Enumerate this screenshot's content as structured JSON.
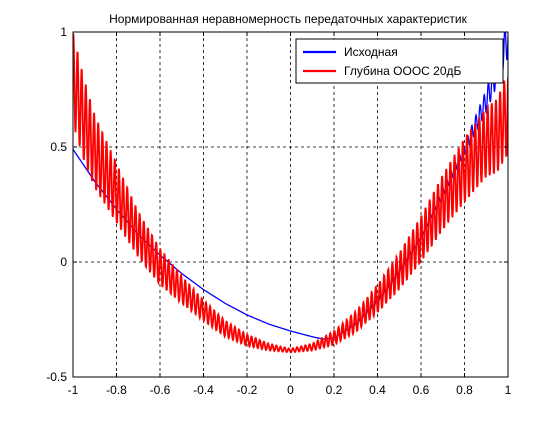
{
  "chart_data": {
    "type": "line",
    "title": "Нормированная неравномерность передаточных характеристик",
    "xlabel": "",
    "ylabel": "",
    "xlim": [
      -1,
      1
    ],
    "ylim": [
      -0.5,
      1
    ],
    "xticks": [
      -1,
      -0.8,
      -0.6,
      -0.4,
      -0.2,
      0,
      0.2,
      0.4,
      0.6,
      0.8,
      1
    ],
    "xtick_labels": [
      "-1",
      "-0.8",
      "-0.6",
      "-0.4",
      "-0.2",
      "0",
      "0.2",
      "0.4",
      "0.6",
      "0.8",
      "1"
    ],
    "yticks": [
      -0.5,
      0,
      0.5,
      1
    ],
    "ytick_labels": [
      "-0.5",
      "0",
      "0.5",
      "1"
    ],
    "grid": true,
    "grid_style": "dashed",
    "legend_position": "top-right",
    "series": [
      {
        "name": "Исходная",
        "color": "#0000ff",
        "x": [
          -1,
          -0.9,
          -0.8,
          -0.7,
          -0.6,
          -0.5,
          -0.4,
          -0.3,
          -0.2,
          -0.1,
          0,
          0.1,
          0.15,
          0.2,
          0.3,
          0.4,
          0.5,
          0.6,
          0.7,
          0.8,
          0.9,
          1
        ],
        "y": [
          0.49,
          0.35,
          0.23,
          0.12,
          0.03,
          -0.05,
          -0.12,
          -0.18,
          -0.23,
          -0.27,
          -0.3,
          -0.325,
          -0.335,
          -0.33,
          -0.27,
          -0.17,
          -0.04,
          0.11,
          0.3,
          0.49,
          0.7,
          0.98
        ],
        "oscillation_amplitude": [
          0,
          0,
          0,
          0,
          0,
          0,
          0,
          0,
          0,
          0,
          0,
          0,
          0,
          0,
          0.005,
          0.01,
          0.015,
          0.015,
          0.02,
          0.025,
          0.05,
          0.09
        ]
      },
      {
        "name": "Глубина ОООС 20дБ",
        "color": "#ff0000",
        "x": [
          -1,
          -0.95,
          -0.9,
          -0.8,
          -0.7,
          -0.6,
          -0.5,
          -0.4,
          -0.3,
          -0.2,
          -0.1,
          0,
          0.1,
          0.2,
          0.3,
          0.4,
          0.5,
          0.6,
          0.7,
          0.8,
          0.9,
          0.95,
          1
        ],
        "y": [
          0.8,
          0.62,
          0.48,
          0.3,
          0.12,
          -0.02,
          -0.12,
          -0.21,
          -0.29,
          -0.34,
          -0.37,
          -0.385,
          -0.37,
          -0.33,
          -0.26,
          -0.16,
          -0.04,
          0.1,
          0.26,
          0.4,
          0.52,
          0.55,
          0.65
        ],
        "oscillation_amplitude": [
          0.2,
          0.18,
          0.16,
          0.13,
          0.1,
          0.08,
          0.06,
          0.045,
          0.035,
          0.025,
          0.015,
          0.008,
          0.015,
          0.03,
          0.045,
          0.06,
          0.08,
          0.1,
          0.12,
          0.14,
          0.15,
          0.16,
          0.18
        ]
      }
    ]
  }
}
